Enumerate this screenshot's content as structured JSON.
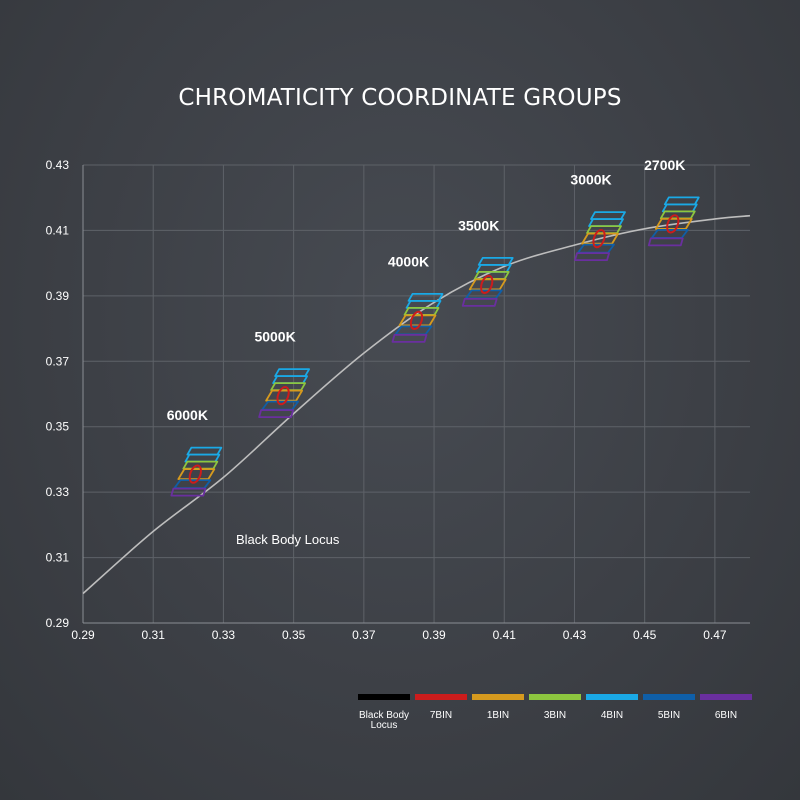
{
  "chart_data": {
    "type": "scatter",
    "title": "CHROMATICITY COORDINATE GROUPS",
    "xlabel": "",
    "ylabel": "",
    "xlim": [
      0.29,
      0.48
    ],
    "ylim": [
      0.29,
      0.43
    ],
    "x_ticks": [
      "0.29",
      "0.31",
      "0.33",
      "0.35",
      "0.37",
      "0.39",
      "0.41",
      "0.43",
      "0.45",
      "0.47"
    ],
    "y_ticks": [
      "0.29",
      "0.31",
      "0.33",
      "0.35",
      "0.37",
      "0.39",
      "0.41",
      "0.43"
    ],
    "grid": true,
    "annotation": "Black Body Locus",
    "locus": {
      "x": [
        0.29,
        0.31,
        0.33,
        0.35,
        0.37,
        0.39,
        0.41,
        0.43,
        0.45,
        0.47,
        0.48
      ],
      "y": [
        0.299,
        0.318,
        0.3345,
        0.354,
        0.3725,
        0.388,
        0.399,
        0.4055,
        0.4105,
        0.4135,
        0.4145
      ]
    },
    "groups": [
      {
        "label": "6000K",
        "x": 0.322,
        "y": 0.3355
      },
      {
        "label": "5000K",
        "x": 0.347,
        "y": 0.3595
      },
      {
        "label": "4000K",
        "x": 0.385,
        "y": 0.3825
      },
      {
        "label": "3500K",
        "x": 0.405,
        "y": 0.3935
      },
      {
        "label": "3000K",
        "x": 0.437,
        "y": 0.4075
      },
      {
        "label": "2700K",
        "x": 0.458,
        "y": 0.412
      }
    ],
    "legend": {
      "placement": "bottom-right",
      "items": [
        {
          "name": "Black Body\nLocus",
          "color": "#000000"
        },
        {
          "name": "7BIN",
          "color": "#cc1c1c"
        },
        {
          "name": "1BIN",
          "color": "#d69a1e"
        },
        {
          "name": "3BIN",
          "color": "#8dc63f"
        },
        {
          "name": "4BIN",
          "color": "#1aa9e6"
        },
        {
          "name": "5BIN",
          "color": "#0f5fa8"
        },
        {
          "name": "6BIN",
          "color": "#6a2f9f"
        }
      ]
    }
  }
}
